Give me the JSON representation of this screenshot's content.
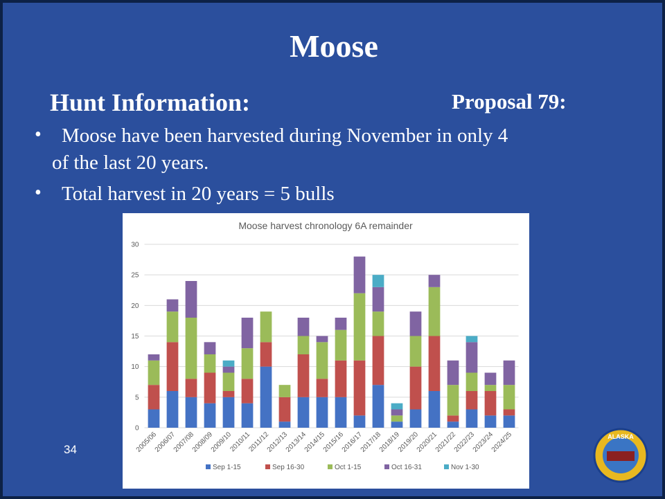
{
  "slide": {
    "title": "Moose",
    "heading": "Hunt Information:",
    "proposal": "Proposal 79:",
    "bullets": [
      "Moose have been harvested during November in only 4",
      "of the last 20 years.",
      "Total harvest in 20 years = 5 bulls"
    ],
    "page_number": "34",
    "logo_text": "ALASKA"
  },
  "chart_data": {
    "type": "stacked_bar",
    "title": "Moose harvest chronology 6A remainder",
    "categories": [
      "2005/06",
      "2006/07",
      "2007/08",
      "2008/09",
      "2009/10",
      "2010/11",
      "2011/12",
      "2012/13",
      "2013/14",
      "2014/15",
      "2015/16",
      "2016/17",
      "2017/18",
      "2018/19",
      "2019/20",
      "2020/21",
      "2021/22",
      "2022/23",
      "2023/24",
      "2024/25"
    ],
    "series": [
      {
        "name": "Sep 1-15",
        "color": "#4472c4",
        "values": [
          3,
          6,
          5,
          4,
          5,
          4,
          10,
          1,
          5,
          5,
          5,
          2,
          7,
          1,
          3,
          6,
          1,
          3,
          2,
          2
        ]
      },
      {
        "name": "Sep 16-30",
        "color": "#c0504d",
        "values": [
          4,
          8,
          3,
          5,
          1,
          4,
          4,
          4,
          7,
          3,
          6,
          9,
          8,
          0,
          7,
          9,
          1,
          3,
          4,
          1
        ]
      },
      {
        "name": "Oct 1-15",
        "color": "#9bbb59",
        "values": [
          4,
          5,
          10,
          3,
          3,
          5,
          5,
          2,
          3,
          6,
          5,
          11,
          4,
          1,
          5,
          8,
          5,
          3,
          1,
          4
        ]
      },
      {
        "name": "Oct 16-31",
        "color": "#8064a2",
        "values": [
          1,
          2,
          6,
          2,
          1,
          5,
          0,
          0,
          3,
          1,
          2,
          6,
          4,
          1,
          4,
          2,
          4,
          5,
          2,
          4
        ]
      },
      {
        "name": "Nov 1-30",
        "color": "#4bacc6",
        "values": [
          0,
          0,
          0,
          0,
          1,
          0,
          0,
          0,
          0,
          0,
          0,
          0,
          2,
          1,
          0,
          0,
          0,
          1,
          0,
          0
        ]
      }
    ],
    "ylim": [
      0,
      30
    ],
    "yticks": [
      0,
      5,
      10,
      15,
      20,
      25,
      30
    ],
    "grid": true,
    "legend": "bottom"
  }
}
